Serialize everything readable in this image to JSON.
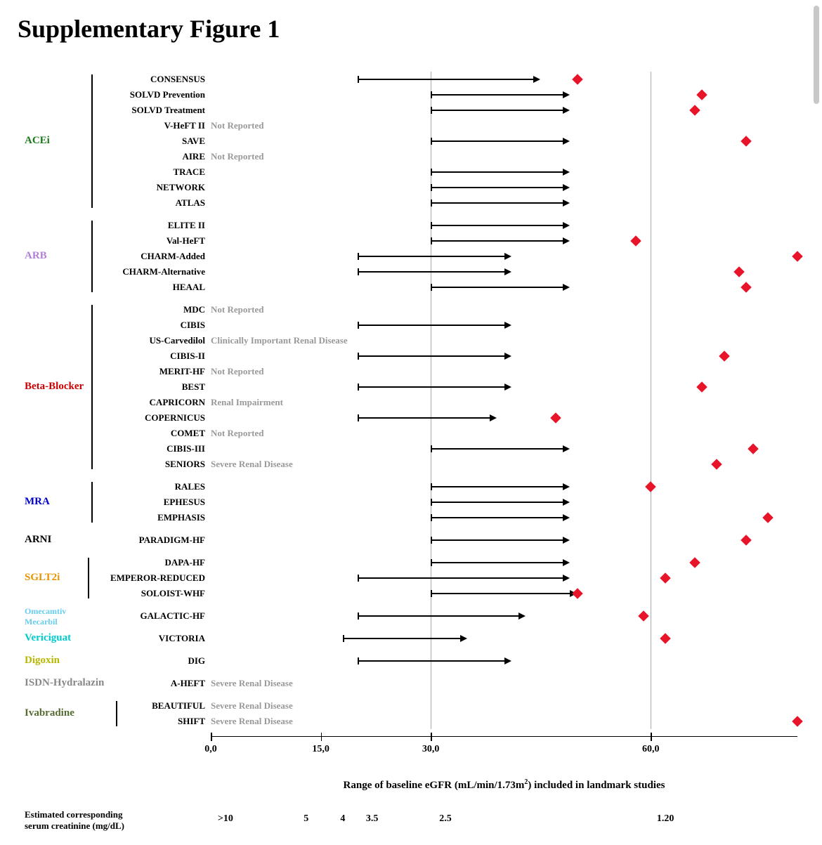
{
  "title": "Supplementary Figure 1",
  "axis": {
    "xmin": 0,
    "xmax": 80,
    "ticks": [
      0,
      15,
      30,
      60
    ],
    "tick_labels": [
      "0,0",
      "15,0",
      "30,0",
      "60,0"
    ],
    "gridlines": [
      30,
      60
    ],
    "title_prefix": "Range of baseline eGFR (mL/min/1.73m",
    "title_suffix": ") included in landmark studies"
  },
  "creatinine": {
    "label_line1": "Estimated corresponding",
    "label_line2": "serum creatinine (mg/dL)",
    "ticks": [
      {
        "x": 2,
        "label": ">10"
      },
      {
        "x": 13,
        "label": "5"
      },
      {
        "x": 18,
        "label": "4"
      },
      {
        "x": 22,
        "label": "3.5"
      },
      {
        "x": 32,
        "label": "2.5"
      },
      {
        "x": 62,
        "label": "1.20"
      }
    ]
  },
  "colors": {
    "diamond": "#e8152a",
    "note": "#999999",
    "grid": "#aaaaaa"
  },
  "groups": [
    {
      "name": "ACEi",
      "color": "#1a7a1a",
      "bracket": true,
      "studies": [
        {
          "label": "CONSENSUS",
          "from": 20,
          "to": 44,
          "diamond": 50
        },
        {
          "label": "SOLVD Prevention",
          "from": 30,
          "to": 48,
          "diamond": 67
        },
        {
          "label": "SOLVD Treatment",
          "from": 30,
          "to": 48,
          "diamond": 66
        },
        {
          "label": "V-HeFT II",
          "note": "Not Reported"
        },
        {
          "label": "SAVE",
          "from": 30,
          "to": 48,
          "diamond": 73
        },
        {
          "label": "AIRE",
          "note": "Not Reported"
        },
        {
          "label": "TRACE",
          "from": 30,
          "to": 48
        },
        {
          "label": "NETWORK",
          "from": 30,
          "to": 48
        },
        {
          "label": "ATLAS",
          "from": 30,
          "to": 48
        }
      ]
    },
    {
      "name": "ARB",
      "color": "#b080d8",
      "bracket": true,
      "studies": [
        {
          "label": "ELITE II",
          "from": 30,
          "to": 48
        },
        {
          "label": "Val-HeFT",
          "from": 30,
          "to": 48,
          "diamond": 58
        },
        {
          "label": "CHARM-Added",
          "from": 20,
          "to": 40,
          "diamond": 80
        },
        {
          "label": "CHARM-Alternative",
          "from": 20,
          "to": 40,
          "diamond": 72
        },
        {
          "label": "HEAAL",
          "from": 30,
          "to": 48,
          "diamond": 73
        }
      ]
    },
    {
      "name": "Beta-Blocker",
      "color": "#cc0000",
      "bracket": true,
      "studies": [
        {
          "label": "MDC",
          "note": "Not Reported"
        },
        {
          "label": "CIBIS",
          "from": 20,
          "to": 40
        },
        {
          "label": "US-Carvedilol",
          "note": "Clinically Important Renal Disease"
        },
        {
          "label": "CIBIS-II",
          "from": 20,
          "to": 40,
          "diamond": 70
        },
        {
          "label": "MERIT-HF",
          "note": "Not Reported"
        },
        {
          "label": "BEST",
          "from": 20,
          "to": 40,
          "diamond": 67
        },
        {
          "label": "CAPRICORN",
          "note": "Renal Impairment"
        },
        {
          "label": "COPERNICUS",
          "from": 20,
          "to": 38,
          "diamond": 47
        },
        {
          "label": "COMET",
          "note": "Not Reported"
        },
        {
          "label": "CIBIS-III",
          "from": 30,
          "to": 48,
          "diamond": 74
        },
        {
          "label": "SENIORS",
          "note": "Severe Renal Disease",
          "diamond": 69
        }
      ]
    },
    {
      "name": "MRA",
      "color": "#0000cc",
      "bracket": true,
      "studies": [
        {
          "label": "RALES",
          "from": 30,
          "to": 48,
          "diamond": 60
        },
        {
          "label": "EPHESUS",
          "from": 30,
          "to": 48
        },
        {
          "label": "EMPHASIS",
          "from": 30,
          "to": 48,
          "diamond": 76
        }
      ]
    },
    {
      "name": "ARNI",
      "color": "#000000",
      "bracket": false,
      "studies": [
        {
          "label": "PARADIGM-HF",
          "from": 30,
          "to": 48,
          "diamond": 73
        }
      ]
    },
    {
      "name": "SGLT2i",
      "color": "#e69500",
      "bracket": true,
      "studies": [
        {
          "label": "DAPA-HF",
          "from": 30,
          "to": 48,
          "diamond": 66
        },
        {
          "label": "EMPEROR-REDUCED",
          "from": 20,
          "to": 48,
          "diamond": 62
        },
        {
          "label": "SOLOIST-WHF",
          "from": 30,
          "to": 49,
          "diamond": 50
        }
      ]
    },
    {
      "name": "Omecamtiv Mecarbil",
      "color": "#66ccee",
      "bracket": false,
      "twoLine": true,
      "studies": [
        {
          "label": "GALACTIC-HF",
          "from": 20,
          "to": 42,
          "diamond": 59
        }
      ]
    },
    {
      "name": "Vericiguat",
      "color": "#00cccc",
      "bracket": false,
      "studies": [
        {
          "label": "VICTORIA",
          "from": 18,
          "to": 34,
          "diamond": 62
        }
      ]
    },
    {
      "name": "Digoxin",
      "color": "#b8b800",
      "bracket": false,
      "studies": [
        {
          "label": "DIG",
          "from": 20,
          "to": 40
        }
      ]
    },
    {
      "name": "ISDN-Hydralazin",
      "color": "#888888",
      "bracket": false,
      "studies": [
        {
          "label": "A-HEFT",
          "note": "Severe Renal Disease"
        }
      ]
    },
    {
      "name": "Ivabradine",
      "color": "#556b2f",
      "bracket": true,
      "studies": [
        {
          "label": "BEAUTIFUL",
          "note": "Severe Renal Disease"
        },
        {
          "label": "SHIFT",
          "note": "Severe Renal Disease",
          "diamond": 80
        }
      ]
    }
  ]
}
